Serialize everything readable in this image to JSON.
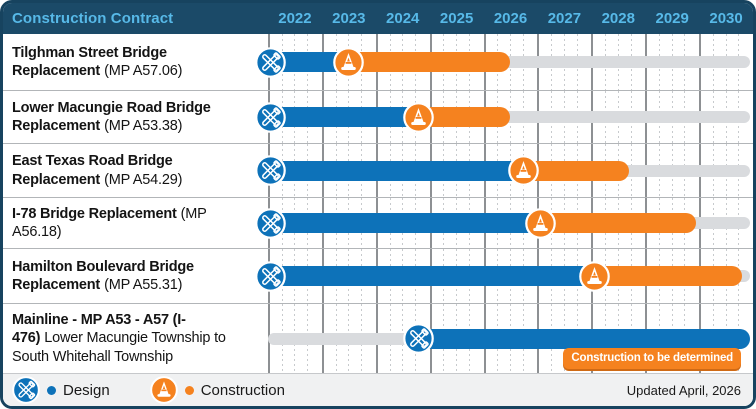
{
  "header": {
    "title": "Construction Contract",
    "years": [
      "2022",
      "2023",
      "2024",
      "2025",
      "2026",
      "2027",
      "2028",
      "2029",
      "2030"
    ]
  },
  "legend": {
    "design_label": "Design",
    "construction_label": "Construction"
  },
  "footer": {
    "updated": "Updated April, 2026"
  },
  "colors": {
    "design_blue": "#0d72b9",
    "construction_orange": "#f5821f",
    "header_navy": "#1b4a68",
    "header_text": "#57b9e8",
    "track_gray": "#d9dbde"
  },
  "icons": {
    "design": "crossed-tools-icon",
    "construction": "traffic-cone-icon"
  },
  "chart_data": {
    "type": "gantt",
    "title": "Construction Contract",
    "x_axis": {
      "start": 2022,
      "end": 2031,
      "tick_labels": [
        "2022",
        "2023",
        "2024",
        "2025",
        "2026",
        "2027",
        "2028",
        "2029",
        "2030"
      ],
      "grid": "yearly solid, quarterly dotted"
    },
    "legend_position": "bottom-left",
    "rows": [
      {
        "name": "Tilghman Street Bridge Replacement",
        "detail": "(MP A57.06)",
        "design_start": 2022.05,
        "construction_start": 2023.5,
        "end": 2026.5,
        "badge": null
      },
      {
        "name": "Lower Macungie Road Bridge Replacement",
        "detail": "(MP A53.38)",
        "design_start": 2022.05,
        "construction_start": 2024.8,
        "end": 2026.5,
        "badge": null
      },
      {
        "name": "East Texas Road Bridge Replacement",
        "detail": "(MP A54.29)",
        "design_start": 2022.05,
        "construction_start": 2026.75,
        "end": 2028.7,
        "badge": null
      },
      {
        "name": "I-78 Bridge Replacement",
        "detail": "(MP A56.18)",
        "design_start": 2022.05,
        "construction_start": 2027.05,
        "end": 2029.95,
        "badge": null
      },
      {
        "name": "Hamilton Boulevard Bridge Replacement",
        "detail": "(MP A55.31)",
        "design_start": 2022.05,
        "construction_start": 2028.05,
        "end": 2030.8,
        "badge": null
      },
      {
        "name": "Mainline - MP A53 - A57 (I-476)",
        "detail": "Lower Macungie Township to South Whitehall Township",
        "design_start": 2024.8,
        "construction_start": null,
        "end": 2030.95,
        "badge": "Construction to be determined"
      }
    ]
  }
}
